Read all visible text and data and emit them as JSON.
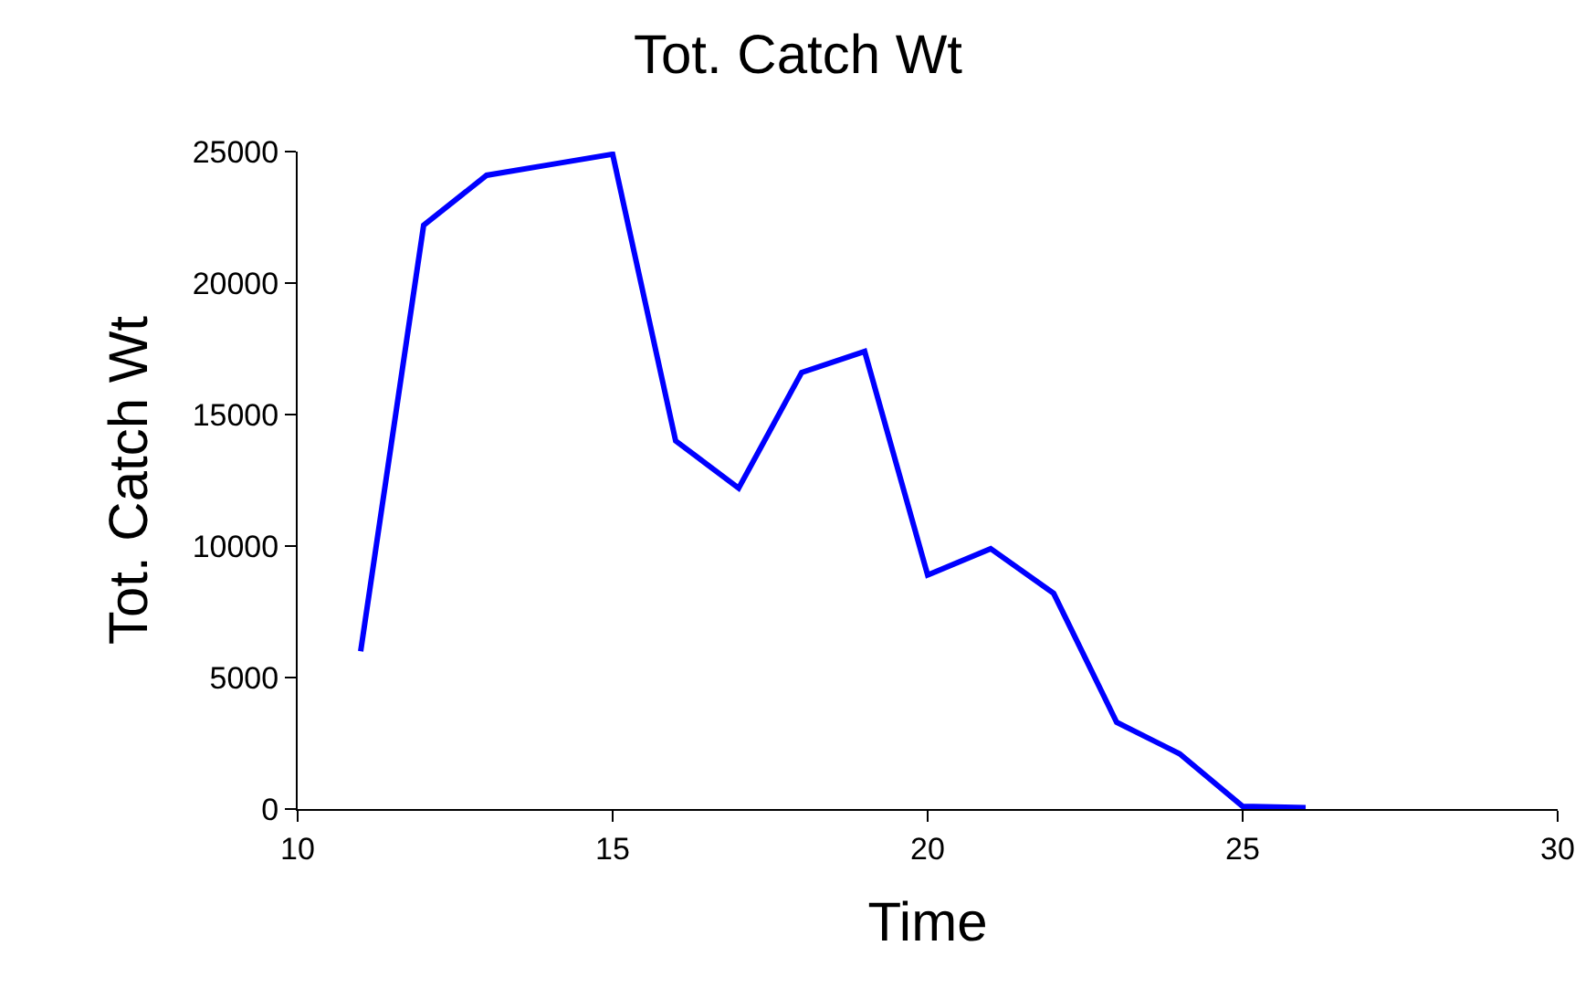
{
  "chart_data": {
    "type": "line",
    "title": "Tot. Catch Wt",
    "xlabel": "Time",
    "ylabel": "Tot. Catch Wt",
    "x": [
      11,
      12,
      13,
      14,
      15,
      16,
      17,
      18,
      19,
      20,
      21,
      22,
      23,
      24,
      25,
      26
    ],
    "series": [
      {
        "color": "#0000ff",
        "values": [
          6000,
          22200,
          24100,
          24500,
          24900,
          14000,
          12200,
          16600,
          17400,
          8900,
          9900,
          8200,
          3300,
          2100,
          100,
          50
        ]
      }
    ],
    "xlim": [
      10,
      30
    ],
    "xticks": [
      10,
      15,
      20,
      25,
      30
    ],
    "ylim": [
      0,
      25000
    ],
    "yticks": [
      0,
      5000,
      10000,
      15000,
      20000,
      25000
    ],
    "marker": "none",
    "line_style": "solid"
  }
}
